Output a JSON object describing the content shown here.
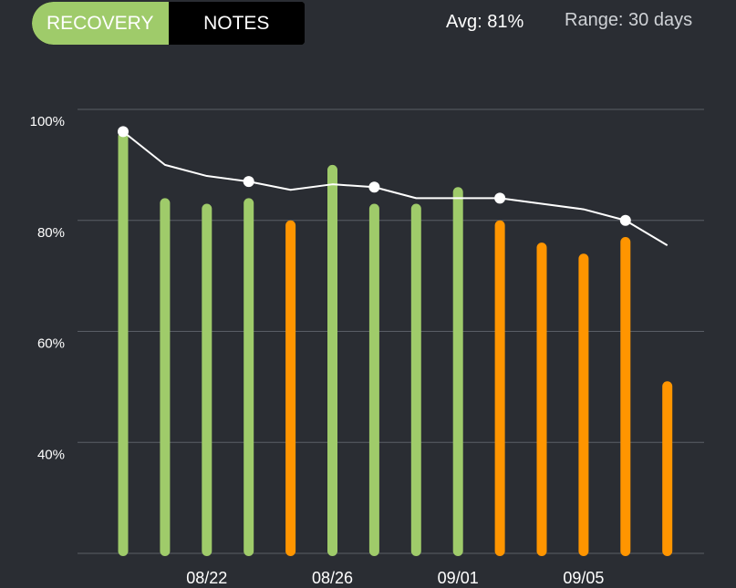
{
  "toggle": {
    "recovery_label": "RECOVERY",
    "notes_label": "NOTES",
    "selected": "RECOVERY"
  },
  "header": {
    "avg_text": "Avg: 81%",
    "range_text": "Range: 30 days"
  },
  "colors": {
    "background": "#2a2d33",
    "green": "#9fcb6a",
    "orange": "#ff9500",
    "line": "#ffffff",
    "grid": "#5a5e66"
  },
  "chart_data": {
    "type": "bar",
    "ylim": [
      20,
      100
    ],
    "y_ticks": [
      {
        "value": 100,
        "label": "100%"
      },
      {
        "value": 80,
        "label": "80%"
      },
      {
        "value": 60,
        "label": "60%"
      },
      {
        "value": 40,
        "label": "40%"
      }
    ],
    "x_labels": [
      {
        "index": 2,
        "label": "08/22"
      },
      {
        "index": 5,
        "label": "08/26"
      },
      {
        "index": 8,
        "label": "09/01"
      },
      {
        "index": 11,
        "label": "09/05"
      }
    ],
    "bars": [
      {
        "value": 96,
        "status": "green"
      },
      {
        "value": 84,
        "status": "green"
      },
      {
        "value": 83,
        "status": "green"
      },
      {
        "value": 84,
        "status": "green"
      },
      {
        "value": 80,
        "status": "orange"
      },
      {
        "value": 90,
        "status": "green"
      },
      {
        "value": 83,
        "status": "green"
      },
      {
        "value": 83,
        "status": "green"
      },
      {
        "value": 86,
        "status": "green"
      },
      {
        "value": 80,
        "status": "orange"
      },
      {
        "value": 76,
        "status": "orange"
      },
      {
        "value": 74,
        "status": "orange"
      },
      {
        "value": 77,
        "status": "orange"
      },
      {
        "value": 51,
        "status": "orange"
      }
    ],
    "trend": [
      96,
      90,
      88,
      87,
      85.5,
      86.5,
      86,
      84,
      84,
      84,
      83,
      82,
      80,
      75.5
    ],
    "trend_markers": [
      0,
      3,
      6,
      9,
      12
    ]
  }
}
